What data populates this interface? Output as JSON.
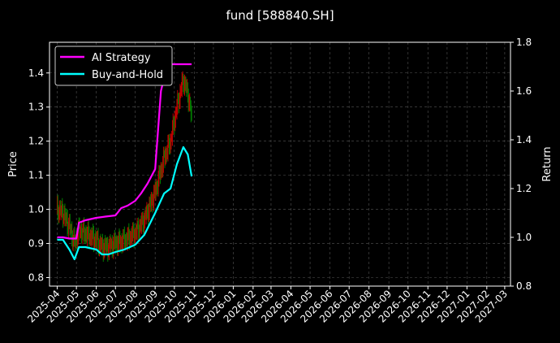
{
  "chart_data": {
    "type": "line",
    "title": "fund [588840.SH]",
    "ylabel": "Price",
    "y2label": "Return",
    "ylim": [
      0.775,
      1.49
    ],
    "y2lim": [
      0.8,
      1.8
    ],
    "grid": true,
    "legend_position": "top-left",
    "background": "#000000",
    "x_ticks": [
      "2025-04",
      "2025-05",
      "2025-06",
      "2025-07",
      "2025-08",
      "2025-09",
      "2025-10",
      "2025-11",
      "2025-12",
      "2026-01",
      "2026-02",
      "2026-03",
      "2026-04",
      "2026-05",
      "2026-06",
      "2026-07",
      "2026-08",
      "2026-09",
      "2026-10",
      "2026-11",
      "2026-12",
      "2027-01",
      "2027-02",
      "2027-03"
    ],
    "y_ticks": [
      0.8,
      0.9,
      1.0,
      1.1,
      1.2,
      1.3,
      1.4
    ],
    "y2_ticks": [
      0.8,
      1.0,
      1.2,
      1.4,
      1.6,
      1.8
    ],
    "series": [
      {
        "name": "AI Strategy",
        "axis": "right",
        "color": "#ff00ff",
        "points": [
          [
            "2025-04-01",
            1.0
          ],
          [
            "2025-04-10",
            1.0
          ],
          [
            "2025-04-20",
            0.995
          ],
          [
            "2025-05-01",
            0.995
          ],
          [
            "2025-05-05",
            1.06
          ],
          [
            "2025-05-15",
            1.07
          ],
          [
            "2025-06-01",
            1.08
          ],
          [
            "2025-06-15",
            1.085
          ],
          [
            "2025-07-01",
            1.09
          ],
          [
            "2025-07-10",
            1.12
          ],
          [
            "2025-07-20",
            1.13
          ],
          [
            "2025-08-01",
            1.15
          ],
          [
            "2025-08-10",
            1.18
          ],
          [
            "2025-08-20",
            1.22
          ],
          [
            "2025-09-01",
            1.28
          ],
          [
            "2025-09-10",
            1.6
          ],
          [
            "2025-09-20",
            1.71
          ],
          [
            "2025-10-01",
            1.71
          ],
          [
            "2025-10-15",
            1.71
          ],
          [
            "2025-10-28",
            1.71
          ]
        ]
      },
      {
        "name": "Buy-and-Hold",
        "axis": "right",
        "color": "#00ffff",
        "points": [
          [
            "2025-04-01",
            0.99
          ],
          [
            "2025-04-10",
            0.99
          ],
          [
            "2025-04-20",
            0.95
          ],
          [
            "2025-04-28",
            0.91
          ],
          [
            "2025-05-05",
            0.96
          ],
          [
            "2025-05-15",
            0.96
          ],
          [
            "2025-06-01",
            0.95
          ],
          [
            "2025-06-10",
            0.93
          ],
          [
            "2025-06-20",
            0.93
          ],
          [
            "2025-07-01",
            0.94
          ],
          [
            "2025-07-15",
            0.95
          ],
          [
            "2025-08-01",
            0.97
          ],
          [
            "2025-08-15",
            1.01
          ],
          [
            "2025-09-01",
            1.1
          ],
          [
            "2025-09-15",
            1.18
          ],
          [
            "2025-09-25",
            1.2
          ],
          [
            "2025-10-05",
            1.3
          ],
          [
            "2025-10-15",
            1.37
          ],
          [
            "2025-10-22",
            1.34
          ],
          [
            "2025-10-28",
            1.25
          ]
        ]
      }
    ],
    "price_bars": {
      "axis": "left",
      "up_color": "#c00000",
      "down_color": "#008000",
      "points": [
        [
          "2025-04-01",
          1.0
        ],
        [
          "2025-04-10",
          0.99
        ],
        [
          "2025-04-20",
          0.95
        ],
        [
          "2025-04-28",
          0.9
        ],
        [
          "2025-05-05",
          0.94
        ],
        [
          "2025-05-15",
          0.93
        ],
        [
          "2025-06-01",
          0.91
        ],
        [
          "2025-06-10",
          0.89
        ],
        [
          "2025-06-20",
          0.89
        ],
        [
          "2025-07-01",
          0.9
        ],
        [
          "2025-07-15",
          0.91
        ],
        [
          "2025-08-01",
          0.93
        ],
        [
          "2025-08-15",
          0.97
        ],
        [
          "2025-09-01",
          1.05
        ],
        [
          "2025-09-15",
          1.15
        ],
        [
          "2025-09-25",
          1.2
        ],
        [
          "2025-10-05",
          1.3
        ],
        [
          "2025-10-15",
          1.38
        ],
        [
          "2025-10-22",
          1.34
        ],
        [
          "2025-10-28",
          1.27
        ]
      ]
    }
  }
}
